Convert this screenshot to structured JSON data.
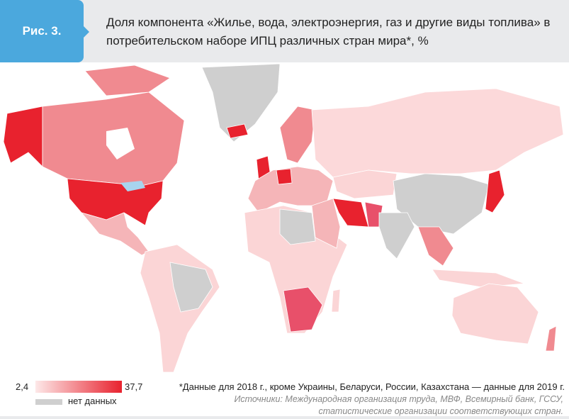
{
  "header": {
    "figure_label": "Рис. 3.",
    "title": "Доля компонента «Жилье, вода, электроэнергия, газ и другие виды топлива» в потребительском наборе ИПЦ различных стран мира*, %"
  },
  "legend": {
    "min": "2,4",
    "max": "37,7",
    "no_data": "нет данных",
    "scale_colors": [
      "#fde8e8",
      "#e8222e"
    ],
    "no_data_color": "#cfcfcf"
  },
  "note": "*Данные для 2018 г., кроме Украины, Беларуси, России, Казахстана — данные для 2019 г.",
  "source": "Источники: Международная организация труда, МВФ, Всемирный банк, ГССУ, статистические организации соответствующих стран.",
  "colors": {
    "header_bg": "#e9eaec",
    "tab": "#4ba8dd",
    "ocean": "#ffffff",
    "water": "#a8d4ee"
  }
}
